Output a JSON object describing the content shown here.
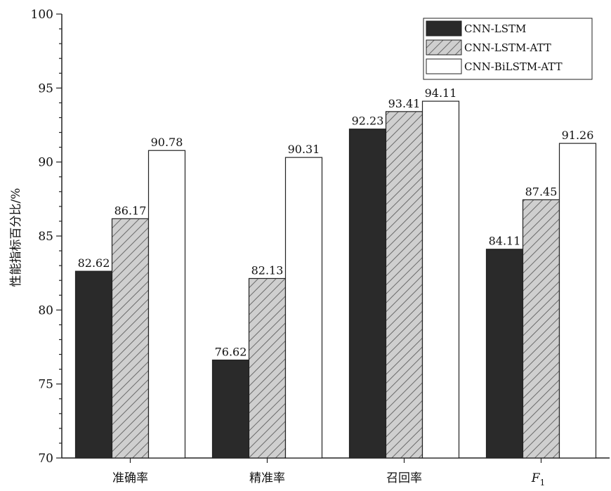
{
  "chart_data": {
    "type": "bar",
    "title": "",
    "xlabel": "",
    "ylabel": "性能指标百分比/%",
    "ylim": [
      70,
      100
    ],
    "yticks": [
      70,
      75,
      80,
      85,
      90,
      95,
      100
    ],
    "categories": [
      "准确率",
      "精准率",
      "召回率",
      "F1"
    ],
    "series": [
      {
        "name": "CNN-LSTM",
        "values": [
          82.62,
          76.62,
          92.23,
          84.11
        ],
        "color": "#2a2a2a",
        "pattern": "solid"
      },
      {
        "name": "CNN-LSTM-ATT",
        "values": [
          86.17,
          82.13,
          93.41,
          87.45
        ],
        "color": "#c8c8c8",
        "pattern": "hatch"
      },
      {
        "name": "CNN-BiLSTM-ATT",
        "values": [
          90.78,
          90.31,
          94.11,
          91.26
        ],
        "color": "#ffffff",
        "pattern": "solid"
      }
    ],
    "value_labels": [
      [
        "82.62",
        "76.62",
        "92.23",
        "84.11"
      ],
      [
        "86.17",
        "82.13",
        "93.41",
        "87.45"
      ],
      [
        "90.78",
        "90.31",
        "94.11",
        "91.26"
      ]
    ],
    "legend_position": "top-right",
    "grid": false
  }
}
